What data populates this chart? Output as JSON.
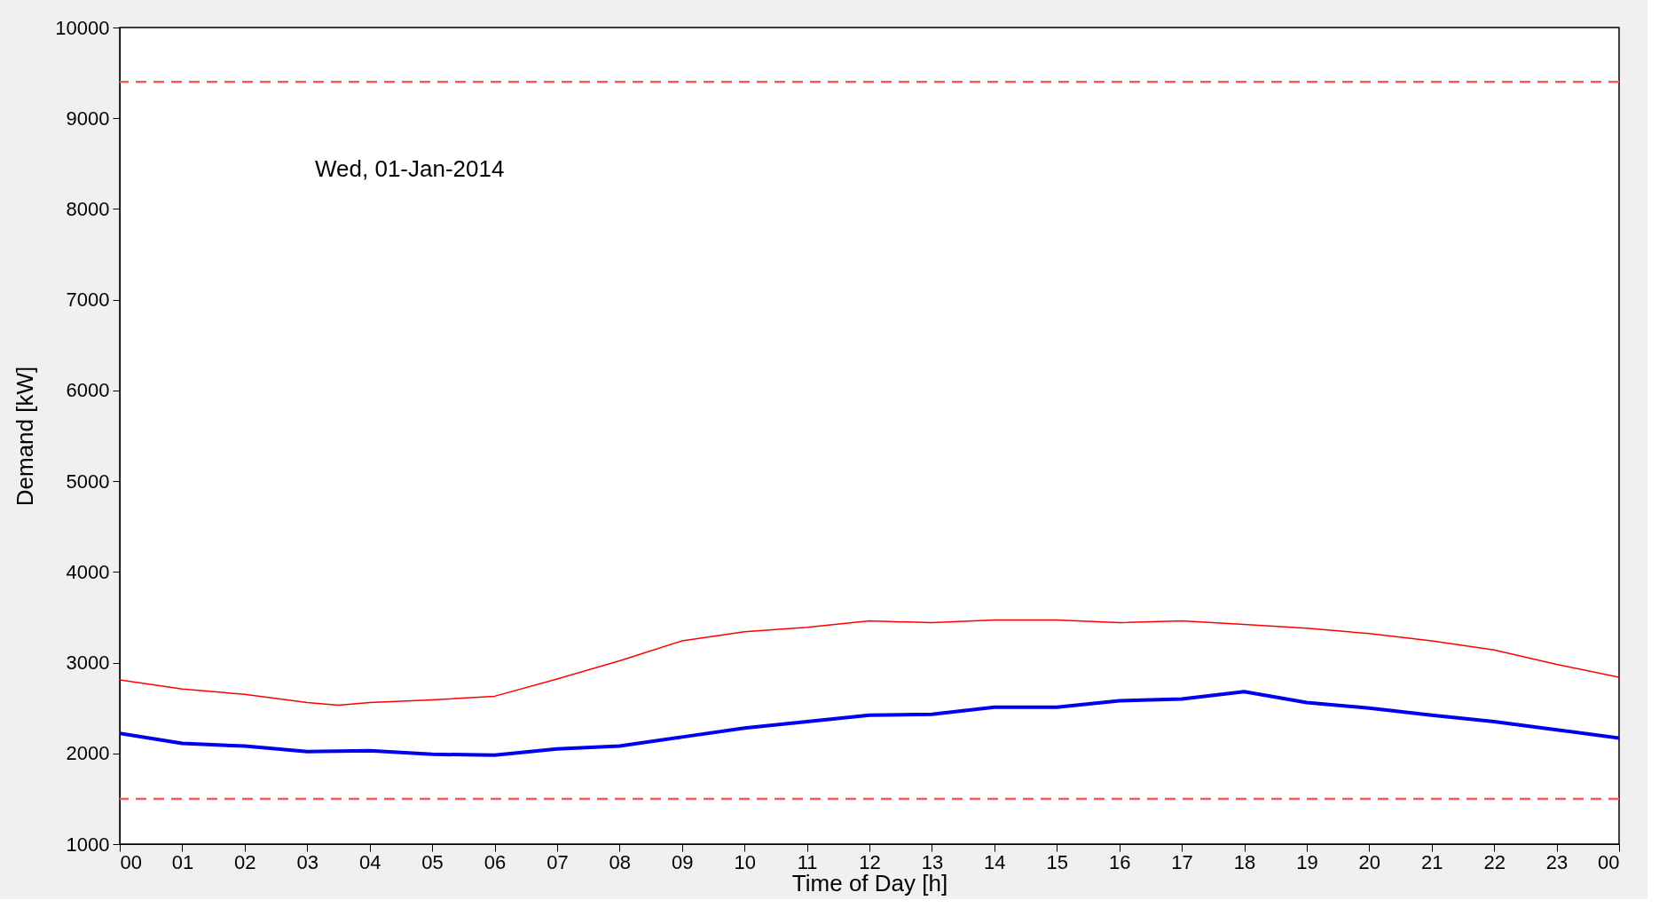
{
  "chart_data": {
    "type": "line",
    "xlabel": "Time of Day [h]",
    "ylabel": "Demand [kW]",
    "annotations": [
      "Wed, 01-Jan-2014"
    ],
    "x": [
      0,
      1,
      2,
      3,
      3.5,
      4,
      5,
      6,
      7,
      8,
      9,
      10,
      11,
      12,
      13,
      14,
      15,
      16,
      17,
      18,
      19,
      20,
      21,
      22,
      23,
      24
    ],
    "series": [
      {
        "color": "#ff0000",
        "values": [
          2810,
          2710,
          2650,
          2560,
          2530,
          2560,
          2590,
          2630,
          2820,
          3020,
          3240,
          3340,
          3390,
          3460,
          3440,
          3470,
          3470,
          3440,
          3460,
          3420,
          3380,
          3320,
          3240,
          3140,
          2980,
          2840
        ]
      },
      {
        "color": "#0000ee",
        "x": [
          0,
          1,
          2,
          3,
          4,
          5,
          6,
          7,
          8,
          9,
          10,
          11,
          12,
          13,
          14,
          15,
          16,
          17,
          18,
          19,
          20,
          21,
          22,
          23,
          24
        ],
        "values": [
          2220,
          2110,
          2080,
          2020,
          2030,
          1990,
          1980,
          2050,
          2080,
          2180,
          2280,
          2350,
          2420,
          2430,
          2510,
          2510,
          2580,
          2600,
          2680,
          2560,
          2500,
          2420,
          2350,
          2260,
          2170
        ]
      }
    ],
    "ref_lines": [
      {
        "axis": "y",
        "value": 9400,
        "color": "#ff5555",
        "line_style": "dashed"
      },
      {
        "axis": "y",
        "value": 1500,
        "color": "#ff5555",
        "line_style": "dashed"
      }
    ],
    "xlim": [
      0,
      24
    ],
    "xticks": [
      {
        "value": 0,
        "label": "00"
      },
      {
        "value": 1,
        "label": "01"
      },
      {
        "value": 2,
        "label": "02"
      },
      {
        "value": 3,
        "label": "03"
      },
      {
        "value": 4,
        "label": "04"
      },
      {
        "value": 5,
        "label": "05"
      },
      {
        "value": 6,
        "label": "06"
      },
      {
        "value": 7,
        "label": "07"
      },
      {
        "value": 8,
        "label": "08"
      },
      {
        "value": 9,
        "label": "09"
      },
      10,
      11,
      12,
      13,
      14,
      15,
      16,
      17,
      18,
      19,
      20,
      21,
      22,
      23,
      {
        "value": 24,
        "label": "00"
      }
    ],
    "ylim": [
      1000,
      10000
    ],
    "yticks": [
      1000,
      2000,
      3000,
      4000,
      5000,
      6000,
      7000,
      8000,
      9000,
      10000
    ],
    "grid": false,
    "marker": "none",
    "line_style": "solid"
  }
}
